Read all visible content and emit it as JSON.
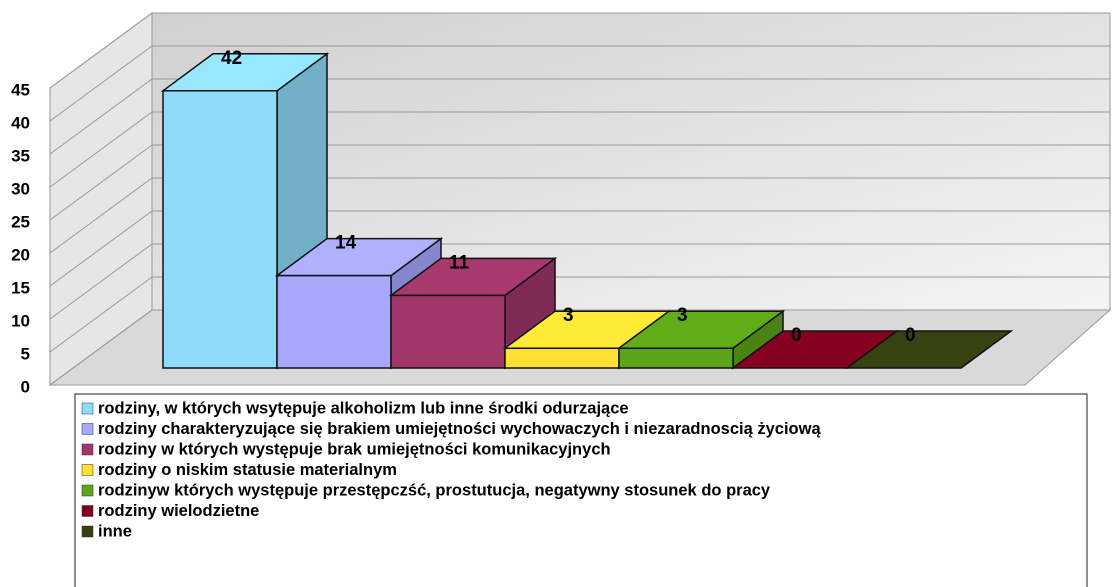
{
  "chart_data": {
    "type": "bar3d",
    "ylim": [
      0,
      45
    ],
    "yticks": [
      0,
      5,
      10,
      15,
      20,
      25,
      30,
      35,
      40,
      45
    ],
    "grid": true,
    "series": [
      {
        "name": "rodziny, w których wsytępuje alkoholizm lub inne środki odurzające",
        "color": "#8fdcfa",
        "values": [
          42
        ]
      },
      {
        "name": "rodziny charakteryzujące się brakiem umiejętności wychowaczych i niezaradnoscią życiową",
        "color": "#a8a8ff",
        "values": [
          14
        ]
      },
      {
        "name": "rodziny w których występuje brak umiejętności komunikacyjnych",
        "color": "#a0366a",
        "values": [
          11
        ]
      },
      {
        "name": "rodziny o niskim statusie materialnym",
        "color": "#ffe033",
        "values": [
          3
        ]
      },
      {
        "name": "rodzinyw  których występuje przestępczść, prostutucja, negatywny stosunek do pracy",
        "color": "#5ca418",
        "values": [
          3
        ]
      },
      {
        "name": "rodziny wielodzietne",
        "color": "#800020",
        "values": [
          0
        ]
      },
      {
        "name": "inne",
        "color": "#334010",
        "values": [
          0
        ]
      }
    ]
  }
}
